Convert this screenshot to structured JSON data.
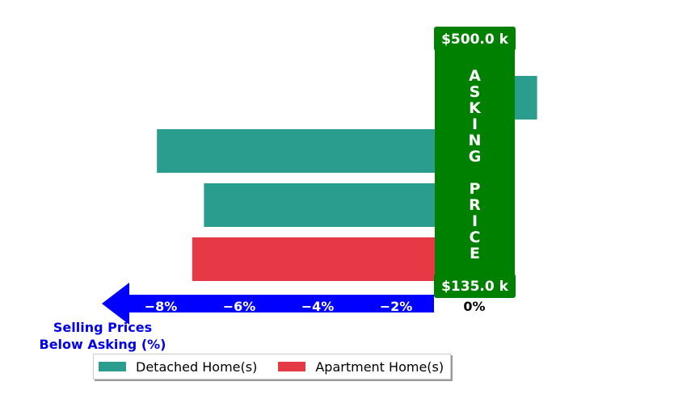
{
  "chart_data": {
    "type": "bar",
    "orientation": "horizontal",
    "series": [
      {
        "name": "Detached Home(s)",
        "color": "#2a9d8f"
      },
      {
        "name": "Apartment Home(s)",
        "color": "#e63946"
      }
    ],
    "bars": [
      {
        "series": "Detached Home(s)",
        "value": 1.6
      },
      {
        "series": "Detached Home(s)",
        "value": -8.1
      },
      {
        "series": "Detached Home(s)",
        "value": -6.9
      },
      {
        "series": "Apartment Home(s)",
        "value": -7.2
      }
    ],
    "xlim": [
      -9.0,
      1.8
    ],
    "xticks": [
      {
        "value": -8,
        "label": "−8%"
      },
      {
        "value": -6,
        "label": "−6%"
      },
      {
        "value": -4,
        "label": "−4%"
      },
      {
        "value": -2,
        "label": "−2%"
      },
      {
        "value": 0,
        "label": "0%"
      }
    ],
    "xlabel": "Selling Prices\nBelow Asking (%)",
    "asking_price": {
      "word": "ASKING PRICE",
      "top_label": "$500.0 k",
      "bottom_label": "$135.0 k",
      "color": "#008000"
    },
    "axis_arrow_color": "#0000ff",
    "legend_position": "bottom-left"
  }
}
